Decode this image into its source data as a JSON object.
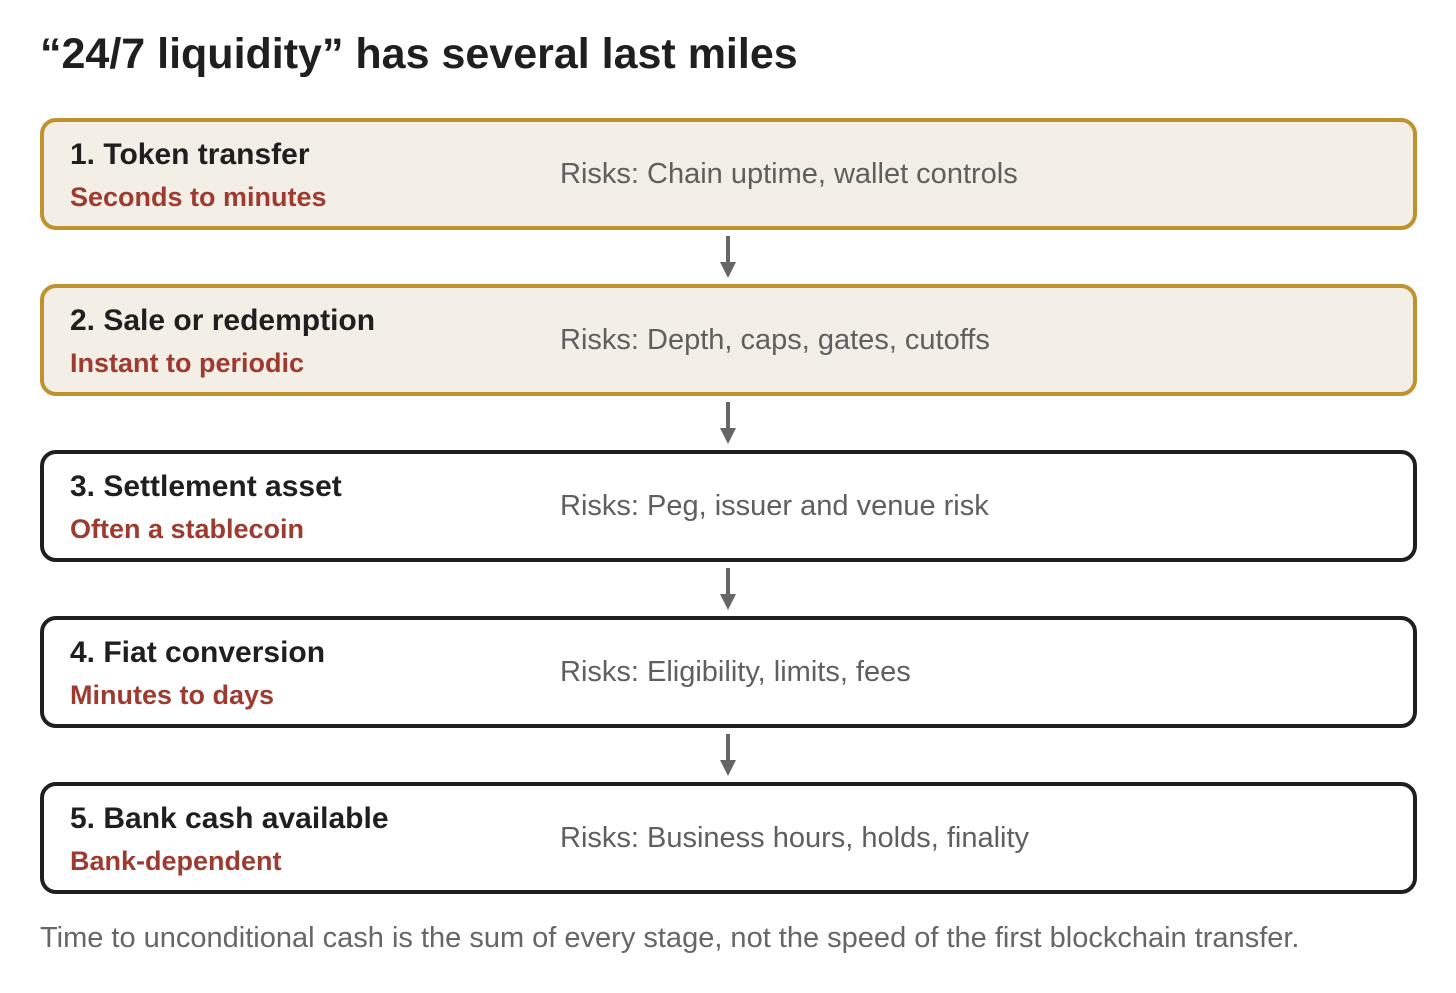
{
  "title": "“24/7 liquidity” has several last miles",
  "stages": [
    {
      "name": "1. Token transfer",
      "timing": "Seconds to minutes",
      "risks": "Risks: Chain uptime, wallet controls",
      "highlighted": true
    },
    {
      "name": "2. Sale or redemption",
      "timing": "Instant to periodic",
      "risks": "Risks: Depth, caps, gates, cutoffs",
      "highlighted": true
    },
    {
      "name": "3. Settlement asset",
      "timing": "Often a stablecoin",
      "risks": "Risks: Peg, issuer and venue risk",
      "highlighted": false
    },
    {
      "name": "4. Fiat conversion",
      "timing": "Minutes to days",
      "risks": "Risks: Eligibility, limits, fees",
      "highlighted": false
    },
    {
      "name": "5. Bank cash available",
      "timing": "Bank-dependent",
      "risks": "Risks: Business hours, holds, finality",
      "highlighted": false
    }
  ],
  "footnote": "Time to unconditional cash is the sum of every stage, not the speed of the first blockchain transfer.",
  "colors": {
    "highlight_border": "#c0922e",
    "highlight_fill": "#f3eee6",
    "default_border": "#1f1f1f",
    "timing_text": "#9d3b30",
    "risk_text": "#5f5f5f",
    "arrow": "#666666"
  }
}
